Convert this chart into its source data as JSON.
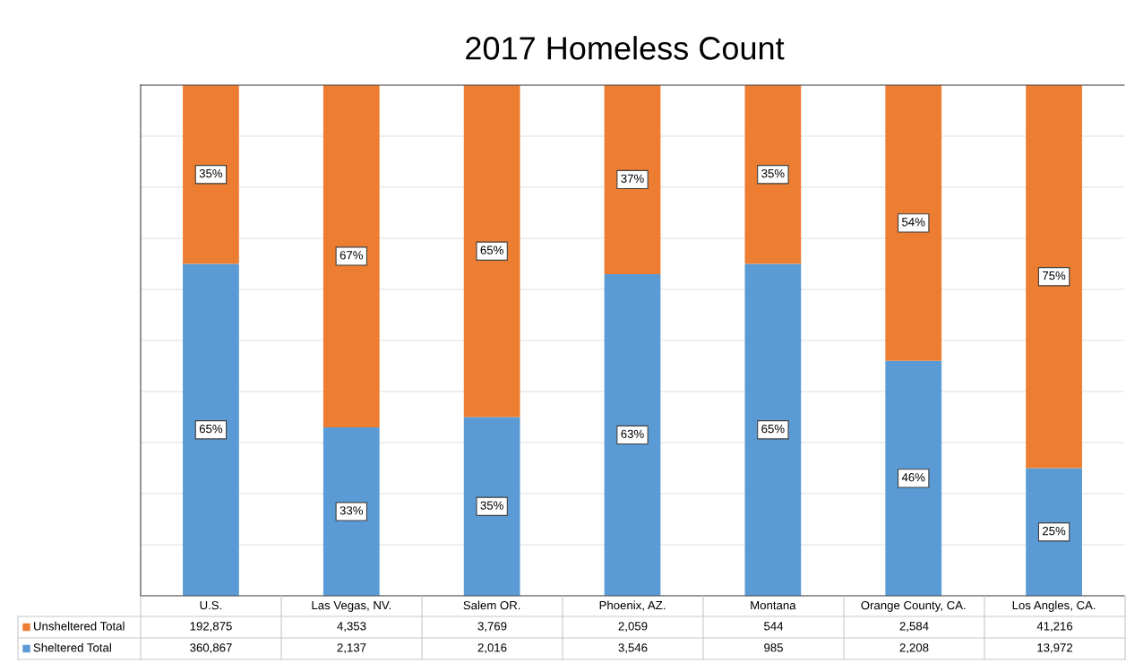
{
  "chart_data": {
    "type": "bar",
    "title": "2017 Homeless Count",
    "stacked": true,
    "categories": [
      "U.S.",
      "Las Vegas, NV.",
      "Salem OR.",
      "Phoenix, AZ.",
      "Montana",
      "Orange County, CA.",
      "Los Angles, CA."
    ],
    "series": [
      {
        "name": "Sheltered Total",
        "color": "#5b9bd5",
        "values": [
          65,
          33,
          35,
          63,
          65,
          46,
          25
        ],
        "value_labels": [
          "65%",
          "33%",
          "35%",
          "63%",
          "65%",
          "46%",
          "25%"
        ]
      },
      {
        "name": "Unsheltered Total",
        "color": "#ed7d31",
        "values": [
          35,
          67,
          65,
          37,
          35,
          54,
          75
        ],
        "value_labels": [
          "35%",
          "67%",
          "65%",
          "37%",
          "35%",
          "54%",
          "75%"
        ]
      }
    ],
    "ylim": [
      0,
      100
    ],
    "yticks": [
      {
        "value": 0,
        "label": null
      },
      {
        "value": 10,
        "label": null
      },
      {
        "value": 20,
        "label": null
      },
      {
        "value": 30,
        "label": null
      },
      {
        "value": 40,
        "label": null
      },
      {
        "value": 50,
        "label": null
      },
      {
        "value": 60,
        "label": null
      },
      {
        "value": 70,
        "label": null
      },
      {
        "value": 80,
        "label": null
      },
      {
        "value": 90,
        "label": null
      },
      {
        "value": 100,
        "label": null
      }
    ],
    "grid": "y",
    "legend": "bottom",
    "tick_labels": "x",
    "annotations": [
      "360,867",
      "2,137",
      "2,016",
      "3,546",
      "985",
      "2,208",
      "13,972",
      "192,875",
      "4,353",
      "3,769",
      "2,059",
      "544",
      "2,584",
      "41,216"
    ]
  }
}
